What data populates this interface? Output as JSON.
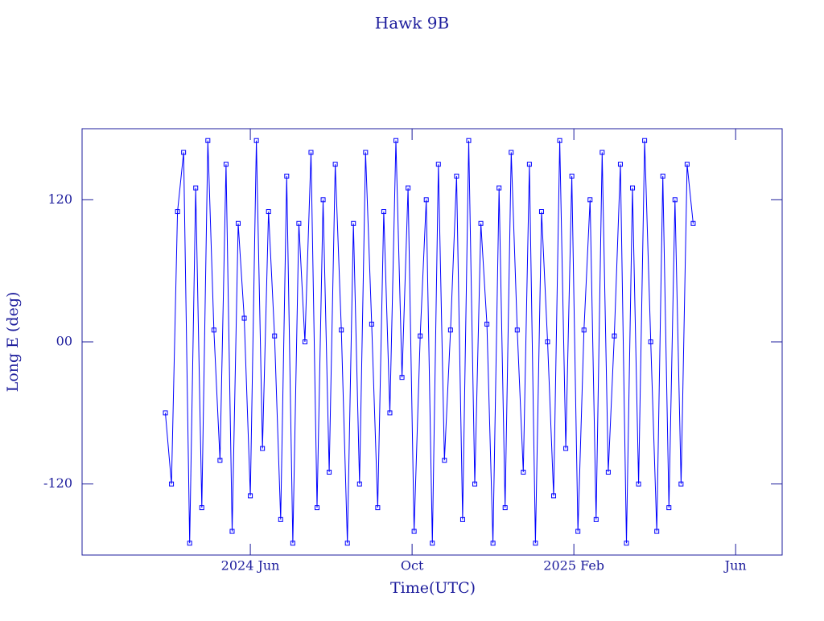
{
  "chart_data": {
    "type": "line",
    "title": "Hawk 9B",
    "xlabel": "Time(UTC)",
    "ylabel": "Long E (deg)",
    "x": [
      3.9,
      4.05,
      4.2,
      4.35,
      4.5,
      4.65,
      4.8,
      4.95,
      5.1,
      5.25,
      5.4,
      5.55,
      5.7,
      5.85,
      6,
      6.15,
      6.3,
      6.45,
      6.6,
      6.75,
      6.9,
      7.05,
      7.2,
      7.35,
      7.5,
      7.65,
      7.8,
      7.95,
      8.1,
      8.25,
      8.4,
      8.55,
      8.7,
      8.85,
      9,
      9.15,
      9.3,
      9.45,
      9.6,
      9.75,
      9.9,
      10.05,
      10.2,
      10.35,
      10.5,
      10.65,
      10.8,
      10.95,
      11.1,
      11.25,
      11.4,
      11.55,
      11.7,
      11.85,
      12,
      12.15,
      12.3,
      12.45,
      12.6,
      12.75,
      12.9,
      13.05,
      13.2,
      13.35,
      13.5,
      13.65,
      13.8,
      13.95,
      14.1,
      14.25,
      14.4,
      14.55,
      14.7,
      14.85,
      15,
      15.15,
      15.3,
      15.45,
      15.6,
      15.75,
      15.9,
      16.05,
      16.2,
      16.35,
      16.5,
      16.65,
      16.8,
      16.95
    ],
    "values": [
      -60,
      -120,
      110,
      160,
      -170,
      130,
      -140,
      170,
      10,
      -100,
      150,
      -160,
      100,
      20,
      -130,
      170,
      -90,
      110,
      5,
      -150,
      140,
      -170,
      100,
      0,
      160,
      -140,
      120,
      -110,
      150,
      10,
      -170,
      100,
      -120,
      160,
      15,
      -140,
      110,
      -60,
      170,
      -30,
      130,
      -160,
      5,
      120,
      -170,
      150,
      -100,
      10,
      140,
      -150,
      170,
      -120,
      100,
      15,
      -170,
      130,
      -140,
      160,
      10,
      -110,
      150,
      -170,
      110,
      0,
      -130,
      170,
      -90,
      140,
      -160,
      10,
      120,
      -150,
      160,
      -110,
      5,
      150,
      -170,
      130,
      -120,
      170,
      0,
      -160,
      140,
      -140,
      120,
      -120,
      150,
      100
    ],
    "color": "#0000ff",
    "marker": "square",
    "xlim": [
      1.84,
      19.15
    ],
    "xticks": [
      {
        "value": 6,
        "label": "2024 Jun"
      },
      {
        "value": 10,
        "label": "Oct"
      },
      {
        "value": 14,
        "label": "2025 Feb"
      },
      {
        "value": 18,
        "label": "Jun"
      }
    ],
    "ylim": [
      -180,
      180
    ],
    "yticks": [
      -120,
      {
        "value": 0,
        "label": "00"
      },
      120
    ]
  }
}
